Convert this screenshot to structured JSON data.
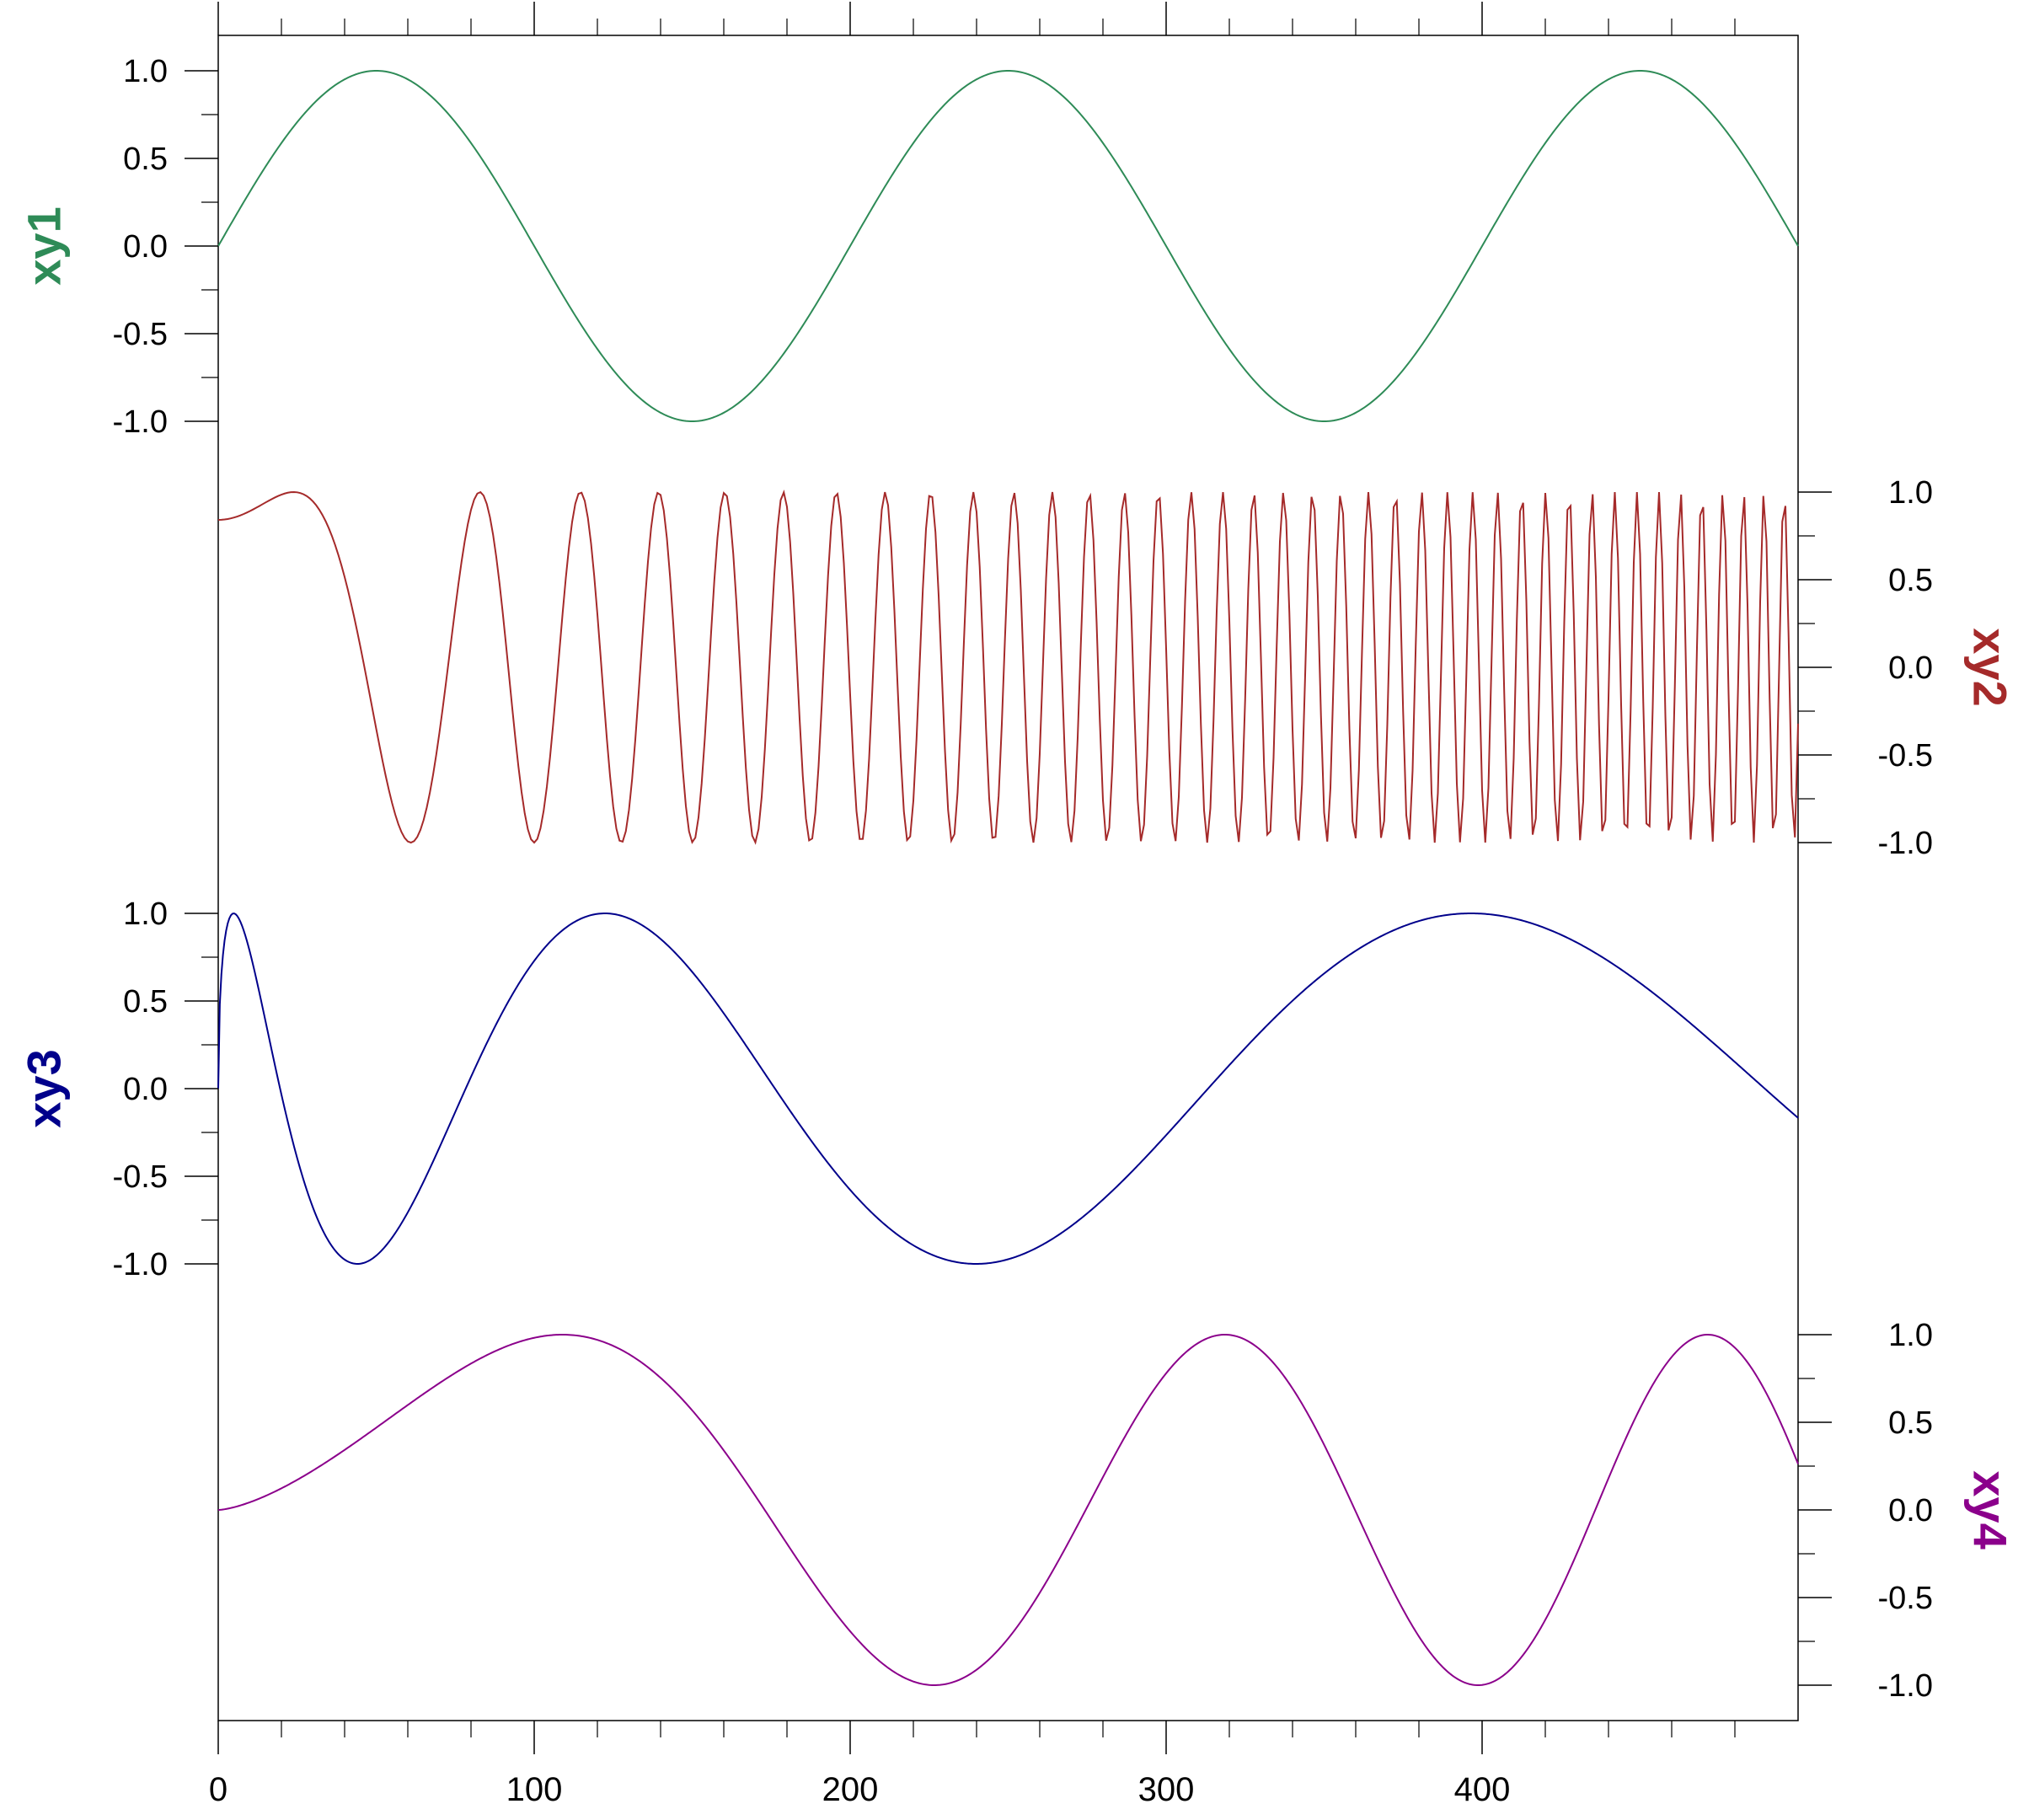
{
  "chart_data": {
    "type": "line",
    "title": "",
    "x": {
      "label": "",
      "range": [
        0,
        500
      ],
      "ticks": [
        "0",
        "100",
        "200",
        "300",
        "400"
      ],
      "tick_values": [
        0,
        100,
        200,
        300,
        400
      ],
      "minor_step": 20
    },
    "grid": false,
    "legend": "none",
    "panels": [
      {
        "name": "xy1",
        "label": "xy1",
        "color": "#2e8b57",
        "axis_side": "left",
        "ylim": [
          -1,
          1
        ],
        "y_ticks": [
          "1.0",
          "0.5",
          "0.0",
          "-0.5",
          "-1.0"
        ],
        "y_tick_values": [
          1,
          0.5,
          0,
          -0.5,
          -1
        ],
        "formula": "sin(2*pi*x/200)"
      },
      {
        "name": "xy2",
        "label": "xy2",
        "color": "#a52a2a",
        "axis_side": "right",
        "ylim": [
          -1,
          1
        ],
        "y_ticks": [
          "1.0",
          "0.5",
          "0.0",
          "-0.5",
          "-1.0"
        ],
        "y_tick_values": [
          1,
          0.5,
          0,
          -0.5,
          -1
        ],
        "formula": "sin(x^2/1000 + 1)"
      },
      {
        "name": "xy3",
        "label": "xy3",
        "color": "#00008b",
        "axis_side": "left",
        "ylim": [
          -1,
          1
        ],
        "y_ticks": [
          "1.0",
          "0.5",
          "0.0",
          "-0.5",
          "-1.0"
        ],
        "y_tick_values": [
          1,
          0.5,
          0,
          -0.5,
          -1
        ],
        "formula": "sin(sqrt(x)*0.71)"
      },
      {
        "name": "xy4",
        "label": "xy4",
        "color": "#8b008b",
        "axis_side": "right",
        "ylim": [
          -1,
          1
        ],
        "y_ticks": [
          "1.0",
          "0.5",
          "0.0",
          "-0.5",
          "-1.0"
        ],
        "y_tick_values": [
          1,
          0.5,
          0,
          -0.5,
          -1
        ],
        "formula": "sin(x^1.5/724)"
      }
    ]
  }
}
